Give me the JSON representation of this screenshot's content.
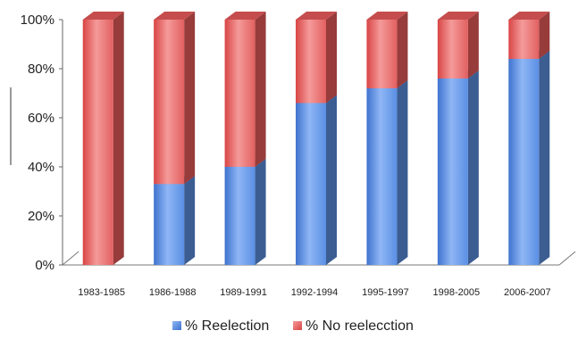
{
  "chart_data": {
    "type": "bar",
    "stacked": true,
    "three_d": true,
    "categories": [
      "1983-1985",
      "1986-1988",
      "1989-1991",
      "1992-1994",
      "1995-1997",
      "1998-2005",
      "2006-2007"
    ],
    "series": [
      {
        "name": "% Reelection",
        "values": [
          0,
          33,
          40,
          66,
          72,
          76,
          84
        ]
      },
      {
        "name": "% No reelecction",
        "values": [
          100,
          67,
          60,
          34,
          28,
          24,
          16
        ]
      }
    ],
    "y_ticks": [
      "0%",
      "20%",
      "40%",
      "60%",
      "80%",
      "100%"
    ],
    "ylim": [
      0,
      100
    ],
    "grid": false,
    "legend_position": "bottom",
    "colors": {
      "reelection": "#5b8fe0",
      "no_reelection": "#e85a5a"
    }
  }
}
